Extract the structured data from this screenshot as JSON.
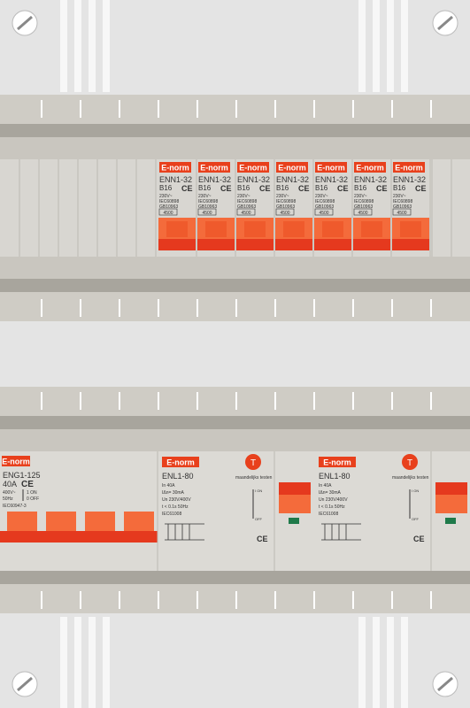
{
  "top_row": {
    "breakers": [
      {
        "brand": "E-norm",
        "model": "ENN1-32",
        "rating": "B16",
        "mark": "CE",
        "voltage": "230V~",
        "standard_1": "IEC60898",
        "standard_2": "GB10963",
        "capacity": "4500"
      },
      {
        "brand": "E-norm",
        "model": "ENN1-32",
        "rating": "B16",
        "mark": "CE",
        "voltage": "230V~",
        "standard_1": "IEC60898",
        "standard_2": "GB10963",
        "capacity": "4500"
      },
      {
        "brand": "E-norm",
        "model": "ENN1-32",
        "rating": "B16",
        "mark": "CE",
        "voltage": "230V~",
        "standard_1": "IEC60898",
        "standard_2": "GB10963",
        "capacity": "4500"
      },
      {
        "brand": "E-norm",
        "model": "ENN1-32",
        "rating": "B16",
        "mark": "CE",
        "voltage": "230V~",
        "standard_1": "IEC60898",
        "standard_2": "GB10963",
        "capacity": "4500"
      },
      {
        "brand": "E-norm",
        "model": "ENN1-32",
        "rating": "B16",
        "mark": "CE",
        "voltage": "230V~",
        "standard_1": "IEC60898",
        "standard_2": "GB10963",
        "capacity": "4500"
      },
      {
        "brand": "E-norm",
        "model": "ENN1-32",
        "rating": "B16",
        "mark": "CE",
        "voltage": "230V~",
        "standard_1": "IEC60898",
        "standard_2": "GB10963",
        "capacity": "4500"
      },
      {
        "brand": "E-norm",
        "model": "ENN1-32",
        "rating": "B16",
        "mark": "CE",
        "voltage": "230V~",
        "standard_1": "IEC60898",
        "standard_2": "GB10963",
        "capacity": "4500"
      }
    ]
  },
  "bottom_row": {
    "main_switch": {
      "brand": "E-norm",
      "model": "ENG1-125",
      "rating": "40A",
      "mark": "CE",
      "voltage": "400V~",
      "frequency": "50Hz",
      "on": "1 ON",
      "off": "0 OFF",
      "standard": "IEC60947-3"
    },
    "rcds": [
      {
        "brand": "E-norm",
        "test_button": "T",
        "test_label": "maandelijks testen",
        "model": "ENL1-80",
        "current": "In 40A",
        "sensitivity": "IΔn= 30mA",
        "voltage": "Un 230V/400V",
        "time": "t < 0.1s 50Hz",
        "standard": "IEC61008",
        "on": "I ON",
        "off": "OFF",
        "mark": "CE"
      },
      {
        "brand": "E-norm",
        "test_button": "T",
        "test_label": "maandelijks testen",
        "model": "ENL1-80",
        "current": "In 40A",
        "sensitivity": "IΔn= 30mA",
        "voltage": "Un 230V/400V",
        "time": "t < 0.1s 50Hz",
        "standard": "IEC61008",
        "on": "I ON",
        "off": "OFF",
        "mark": "CE"
      }
    ]
  }
}
